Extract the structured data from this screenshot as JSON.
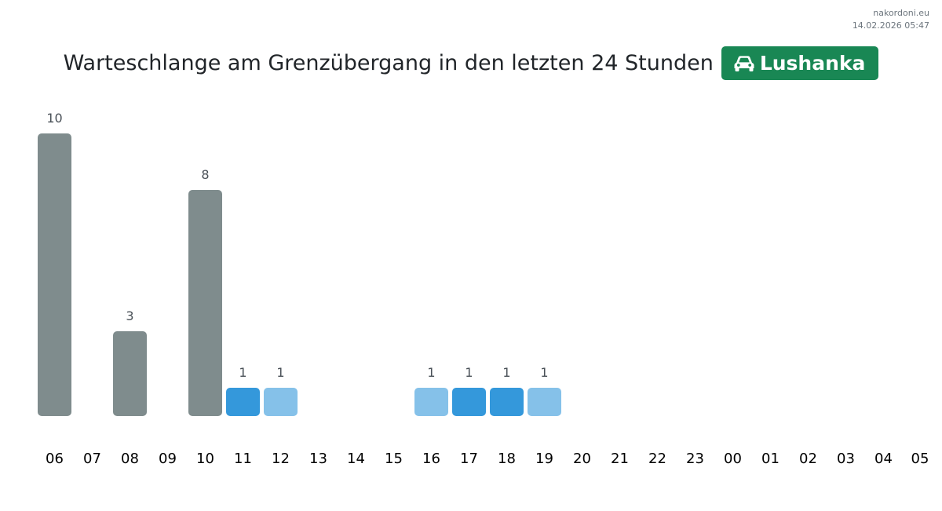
{
  "site": {
    "name": "nakordoni.eu",
    "timestamp": "14.02.2026 05:47"
  },
  "header": {
    "title": "Warteschlange am Grenzübergang in den letzten 24 Stunden",
    "crossing_name": "Lushanka",
    "crossing_icon": "car-icon",
    "badge_color": "#198754"
  },
  "colors": {
    "gray": "#7f8c8d",
    "blue": "#3498db",
    "light_blue": "#85c1e9"
  },
  "chart_data": {
    "type": "bar",
    "title": "",
    "xlabel": "",
    "ylabel": "",
    "ylim": [
      0,
      10
    ],
    "grid": false,
    "categories": [
      "06",
      "07",
      "08",
      "09",
      "10",
      "11",
      "12",
      "13",
      "14",
      "15",
      "16",
      "17",
      "18",
      "19",
      "20",
      "21",
      "22",
      "23",
      "00",
      "01",
      "02",
      "03",
      "04",
      "05"
    ],
    "values": [
      10,
      null,
      3,
      null,
      8,
      1,
      1,
      null,
      null,
      null,
      1,
      1,
      1,
      1,
      null,
      null,
      null,
      null,
      null,
      null,
      null,
      null,
      null,
      null
    ],
    "bar_colors": [
      "gray",
      null,
      "gray",
      null,
      "gray",
      "blue",
      "light_blue",
      null,
      null,
      null,
      "light_blue",
      "blue",
      "blue",
      "light_blue",
      null,
      null,
      null,
      null,
      null,
      null,
      null,
      null,
      null,
      null
    ]
  }
}
